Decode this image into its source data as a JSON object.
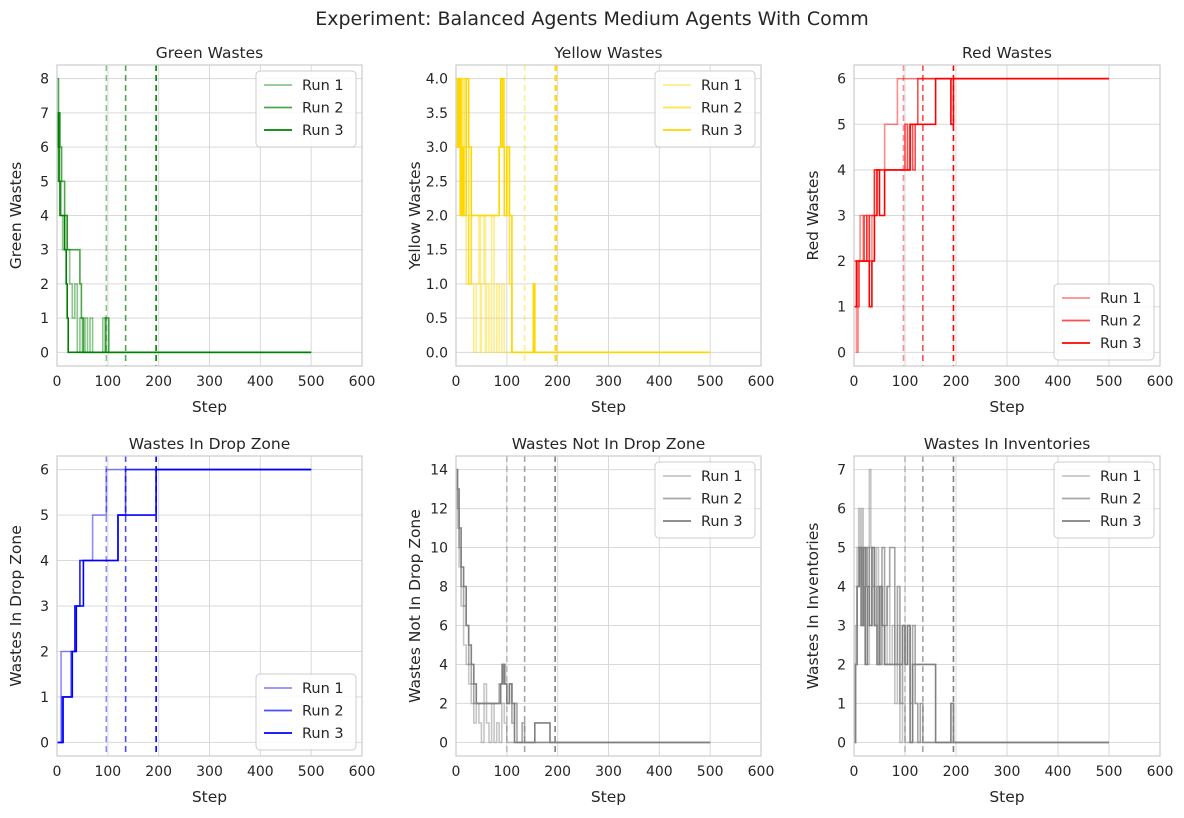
{
  "figure": {
    "title": "Experiment: Balanced Agents Medium Agents With Comm",
    "background": "#ffffff",
    "plot_background": "#ffffff",
    "grid_color": "#d9d9d9",
    "spine_color": "#cccccc"
  },
  "chart_data": [
    {
      "type": "line",
      "title": "Green Wastes",
      "xlabel": "Step",
      "ylabel": "Green Wastes",
      "xlim": [
        0,
        600
      ],
      "ylim": [
        -0.4,
        8.4
      ],
      "xticks": [
        0,
        100,
        200,
        300,
        400,
        500,
        600
      ],
      "yticks": [
        0,
        1,
        2,
        3,
        4,
        5,
        6,
        7,
        8
      ],
      "ytick_labels": [
        "0",
        "1",
        "2",
        "3",
        "4",
        "5",
        "6",
        "7",
        "8"
      ],
      "grid": true,
      "legend_position": "top-right",
      "color": "#008000",
      "series": [
        {
          "name": "Run 1",
          "alpha": 0.45,
          "x": [
            0,
            2,
            5,
            8,
            11,
            15,
            20,
            25,
            30,
            35,
            40,
            45,
            50,
            55,
            60,
            65,
            70,
            90,
            97,
            100,
            500
          ],
          "y": [
            5,
            6,
            5,
            4,
            3,
            4,
            3,
            2,
            1,
            2,
            0,
            1,
            0,
            1,
            0,
            1,
            0,
            1,
            0,
            0,
            0
          ]
        },
        {
          "name": "Run 2",
          "alpha": 0.7,
          "x": [
            0,
            3,
            6,
            9,
            15,
            20,
            25,
            30,
            35,
            40,
            45,
            48,
            52,
            55,
            90,
            95,
            100,
            102,
            500
          ],
          "y": [
            8,
            7,
            6,
            5,
            4,
            3,
            3,
            3,
            3,
            3,
            2,
            1,
            0,
            0,
            0,
            1,
            1,
            0,
            0
          ]
        },
        {
          "name": "Run 3",
          "alpha": 1.0,
          "x": [
            0,
            2,
            4,
            6,
            10,
            15,
            18,
            20,
            22,
            25,
            500
          ],
          "y": [
            6,
            7,
            5,
            4,
            4,
            3,
            2,
            1,
            0,
            0,
            0
          ]
        }
      ],
      "vlines": [
        {
          "x": 97,
          "alpha": 0.45
        },
        {
          "x": 135,
          "alpha": 0.7
        },
        {
          "x": 195,
          "alpha": 1.0
        }
      ]
    },
    {
      "type": "line",
      "title": "Yellow Wastes",
      "xlabel": "Step",
      "ylabel": "Yellow Wastes",
      "xlim": [
        0,
        600
      ],
      "ylim": [
        -0.2,
        4.2
      ],
      "xticks": [
        0,
        100,
        200,
        300,
        400,
        500,
        600
      ],
      "yticks": [
        0,
        0.5,
        1,
        1.5,
        2,
        2.5,
        3,
        3.5,
        4
      ],
      "ytick_labels": [
        "0.0",
        "0.5",
        "1.0",
        "1.5",
        "2.0",
        "2.5",
        "3.0",
        "3.5",
        "4.0"
      ],
      "grid": true,
      "legend_position": "top-right",
      "color": "#ffd700",
      "series": [
        {
          "name": "Run 1",
          "alpha": 0.45,
          "x": [
            0,
            5,
            10,
            15,
            20,
            25,
            30,
            35,
            40,
            45,
            48,
            50,
            55,
            58,
            60,
            65,
            70,
            75,
            80,
            85,
            90,
            95,
            100,
            500
          ],
          "y": [
            3,
            4,
            2,
            3,
            1,
            2,
            1,
            0,
            1,
            2,
            0,
            1,
            2,
            0,
            1,
            0,
            2,
            0,
            1,
            0,
            1,
            0,
            0,
            0
          ]
        },
        {
          "name": "Run 2",
          "alpha": 0.7,
          "x": [
            0,
            4,
            8,
            12,
            16,
            20,
            25,
            30,
            40,
            50,
            60,
            70,
            80,
            85,
            90,
            95,
            100,
            105,
            110,
            112,
            500
          ],
          "y": [
            4,
            3,
            2,
            4,
            2,
            3,
            1,
            2,
            2,
            2,
            2,
            2,
            2,
            3,
            4,
            2,
            3,
            1,
            0,
            0,
            0
          ]
        },
        {
          "name": "Run 3",
          "alpha": 1.0,
          "x": [
            0,
            3,
            6,
            9,
            12,
            15,
            20,
            25,
            30,
            35,
            40,
            45,
            50,
            60,
            70,
            80,
            85,
            88,
            92,
            95,
            100,
            105,
            110,
            150,
            152,
            155,
            500
          ],
          "y": [
            4,
            3,
            4,
            2,
            3,
            2,
            4,
            3,
            2,
            2,
            2,
            2,
            2,
            2,
            2,
            2,
            3,
            4,
            3,
            2,
            3,
            2,
            0,
            0,
            1,
            0,
            0
          ]
        }
      ],
      "vlines": [
        {
          "x": 135,
          "alpha": 0.45
        },
        {
          "x": 195,
          "alpha": 0.7
        },
        {
          "x": 197,
          "alpha": 1.0
        }
      ]
    },
    {
      "type": "line",
      "title": "Red Wastes",
      "xlabel": "Step",
      "ylabel": "Red Wastes",
      "xlim": [
        0,
        600
      ],
      "ylim": [
        -0.3,
        6.3
      ],
      "xticks": [
        0,
        100,
        200,
        300,
        400,
        500,
        600
      ],
      "yticks": [
        0,
        1,
        2,
        3,
        4,
        5,
        6
      ],
      "ytick_labels": [
        "0",
        "1",
        "2",
        "3",
        "4",
        "5",
        "6"
      ],
      "grid": true,
      "legend_position": "bottom-right",
      "color": "#ff0000",
      "series": [
        {
          "name": "Run 1",
          "alpha": 0.45,
          "x": [
            0,
            5,
            8,
            12,
            18,
            25,
            30,
            35,
            40,
            45,
            55,
            60,
            65,
            70,
            80,
            85,
            90,
            95,
            100,
            500
          ],
          "y": [
            1,
            0,
            2,
            3,
            2,
            3,
            2,
            3,
            4,
            4,
            4,
            5,
            5,
            5,
            5,
            6,
            6,
            6,
            6,
            6
          ]
        },
        {
          "name": "Run 2",
          "alpha": 0.7,
          "x": [
            0,
            5,
            10,
            15,
            20,
            25,
            30,
            35,
            40,
            50,
            60,
            70,
            80,
            90,
            100,
            105,
            110,
            115,
            120,
            125,
            130,
            500
          ],
          "y": [
            2,
            1,
            2,
            2,
            3,
            2,
            3,
            3,
            4,
            4,
            4,
            4,
            4,
            4,
            5,
            4,
            5,
            4,
            5,
            6,
            6,
            6
          ]
        },
        {
          "name": "Run 3",
          "alpha": 1.0,
          "x": [
            0,
            5,
            15,
            20,
            25,
            30,
            35,
            40,
            45,
            50,
            60,
            80,
            100,
            110,
            120,
            140,
            160,
            170,
            180,
            190,
            195,
            500
          ],
          "y": [
            1,
            2,
            2,
            2,
            2,
            1,
            2,
            3,
            4,
            3,
            4,
            4,
            4,
            5,
            5,
            5,
            6,
            6,
            6,
            5,
            6,
            6
          ]
        }
      ],
      "vlines": [
        {
          "x": 97,
          "alpha": 0.45
        },
        {
          "x": 135,
          "alpha": 0.7
        },
        {
          "x": 195,
          "alpha": 1.0
        }
      ]
    },
    {
      "type": "line",
      "title": "Wastes In Drop Zone",
      "xlabel": "Step",
      "ylabel": "Wastes In Drop Zone",
      "xlim": [
        0,
        600
      ],
      "ylim": [
        -0.3,
        6.3
      ],
      "xticks": [
        0,
        100,
        200,
        300,
        400,
        500,
        600
      ],
      "yticks": [
        0,
        1,
        2,
        3,
        4,
        5,
        6
      ],
      "ytick_labels": [
        "0",
        "1",
        "2",
        "3",
        "4",
        "5",
        "6"
      ],
      "grid": true,
      "legend_position": "bottom-right",
      "color": "#0000ff",
      "series": [
        {
          "name": "Run 1",
          "alpha": 0.45,
          "x": [
            0,
            8,
            35,
            45,
            70,
            97,
            500
          ],
          "y": [
            0,
            2,
            3,
            4,
            5,
            6,
            6
          ]
        },
        {
          "name": "Run 2",
          "alpha": 0.7,
          "x": [
            0,
            10,
            28,
            35,
            45,
            100,
            120,
            135,
            500
          ],
          "y": [
            0,
            1,
            2,
            3,
            4,
            4,
            5,
            6,
            6
          ]
        },
        {
          "name": "Run 3",
          "alpha": 1.0,
          "x": [
            0,
            12,
            30,
            38,
            52,
            120,
            195,
            500
          ],
          "y": [
            0,
            1,
            2,
            3,
            4,
            5,
            6,
            6
          ]
        }
      ],
      "vlines": [
        {
          "x": 97,
          "alpha": 0.45
        },
        {
          "x": 135,
          "alpha": 0.7
        },
        {
          "x": 195,
          "alpha": 1.0
        }
      ]
    },
    {
      "type": "line",
      "title": "Wastes Not In Drop Zone",
      "xlabel": "Step",
      "ylabel": "Wastes Not In Drop Zone",
      "xlim": [
        0,
        600
      ],
      "ylim": [
        -0.7,
        14.7
      ],
      "xticks": [
        0,
        100,
        200,
        300,
        400,
        500,
        600
      ],
      "yticks": [
        0,
        2,
        4,
        6,
        8,
        10,
        12,
        14
      ],
      "ytick_labels": [
        "0",
        "2",
        "4",
        "6",
        "8",
        "10",
        "12",
        "14"
      ],
      "grid": true,
      "legend_position": "top-right",
      "color": "#808080",
      "series": [
        {
          "name": "Run 1",
          "alpha": 0.45,
          "x": [
            0,
            3,
            6,
            10,
            15,
            20,
            25,
            30,
            35,
            40,
            45,
            50,
            55,
            60,
            65,
            70,
            75,
            80,
            85,
            90,
            95,
            100,
            500
          ],
          "y": [
            13,
            11,
            9,
            7,
            5,
            4,
            3,
            2,
            1,
            2,
            1,
            0,
            3,
            1,
            0,
            2,
            0,
            1,
            0,
            2,
            1,
            0,
            0
          ]
        },
        {
          "name": "Run 2",
          "alpha": 0.7,
          "x": [
            0,
            3,
            6,
            10,
            15,
            20,
            25,
            30,
            35,
            40,
            45,
            50,
            60,
            70,
            80,
            85,
            90,
            95,
            100,
            105,
            110,
            115,
            120,
            130,
            135,
            500
          ],
          "y": [
            14,
            12,
            10,
            8,
            7,
            6,
            4,
            3,
            2,
            2,
            2,
            2,
            2,
            2,
            2,
            3,
            4,
            3,
            2,
            3,
            1,
            2,
            0,
            1,
            0,
            0
          ]
        },
        {
          "name": "Run 3",
          "alpha": 1.0,
          "x": [
            0,
            3,
            6,
            10,
            15,
            20,
            25,
            30,
            35,
            40,
            45,
            50,
            60,
            70,
            80,
            88,
            92,
            96,
            100,
            105,
            110,
            115,
            150,
            155,
            170,
            185,
            195,
            500
          ],
          "y": [
            14,
            13,
            11,
            9,
            8,
            6,
            5,
            4,
            3,
            2,
            2,
            2,
            2,
            2,
            2,
            3,
            4,
            3,
            2,
            3,
            2,
            0,
            0,
            1,
            1,
            0,
            0,
            0
          ]
        }
      ],
      "vlines": [
        {
          "x": 100,
          "alpha": 0.45
        },
        {
          "x": 135,
          "alpha": 0.7
        },
        {
          "x": 195,
          "alpha": 1.0
        }
      ]
    },
    {
      "type": "line",
      "title": "Wastes In Inventories",
      "xlabel": "Step",
      "ylabel": "Wastes In Inventories",
      "xlim": [
        0,
        600
      ],
      "ylim": [
        -0.35,
        7.35
      ],
      "xticks": [
        0,
        100,
        200,
        300,
        400,
        500,
        600
      ],
      "yticks": [
        0,
        1,
        2,
        3,
        4,
        5,
        6,
        7
      ],
      "ytick_labels": [
        "0",
        "1",
        "2",
        "3",
        "4",
        "5",
        "6",
        "7"
      ],
      "grid": true,
      "legend_position": "top-right",
      "color": "#808080",
      "series": [
        {
          "name": "Run 1",
          "alpha": 0.45,
          "x": [
            0,
            3,
            6,
            9,
            12,
            15,
            18,
            22,
            26,
            30,
            33,
            36,
            40,
            44,
            48,
            52,
            56,
            60,
            65,
            70,
            75,
            80,
            85,
            90,
            95,
            100,
            500
          ],
          "y": [
            0,
            3,
            5,
            6,
            4,
            6,
            3,
            5,
            2,
            7,
            5,
            4,
            3,
            5,
            2,
            4,
            3,
            2,
            4,
            2,
            3,
            1,
            3,
            0,
            1,
            0,
            0
          ]
        },
        {
          "name": "Run 2",
          "alpha": 0.7,
          "x": [
            0,
            3,
            6,
            10,
            15,
            20,
            25,
            30,
            35,
            40,
            45,
            50,
            55,
            60,
            65,
            70,
            80,
            85,
            90,
            95,
            100,
            105,
            110,
            115,
            120,
            125,
            130,
            135,
            500
          ],
          "y": [
            0,
            2,
            4,
            5,
            3,
            4,
            5,
            3,
            4,
            3,
            4,
            2,
            5,
            3,
            4,
            5,
            2,
            4,
            1,
            3,
            2,
            3,
            1,
            3,
            1,
            0,
            1,
            0,
            0
          ]
        },
        {
          "name": "Run 3",
          "alpha": 1.0,
          "x": [
            0,
            3,
            6,
            10,
            14,
            18,
            22,
            26,
            30,
            35,
            40,
            45,
            50,
            55,
            60,
            70,
            80,
            90,
            95,
            100,
            105,
            110,
            115,
            125,
            150,
            160,
            190,
            195,
            500
          ],
          "y": [
            0,
            2,
            4,
            5,
            3,
            5,
            2,
            4,
            3,
            5,
            3,
            2,
            4,
            3,
            2,
            2,
            2,
            2,
            3,
            2,
            3,
            0,
            2,
            2,
            2,
            0,
            1,
            0,
            0
          ]
        }
      ],
      "vlines": [
        {
          "x": 100,
          "alpha": 0.45
        },
        {
          "x": 135,
          "alpha": 0.7
        },
        {
          "x": 195,
          "alpha": 1.0
        }
      ]
    }
  ]
}
